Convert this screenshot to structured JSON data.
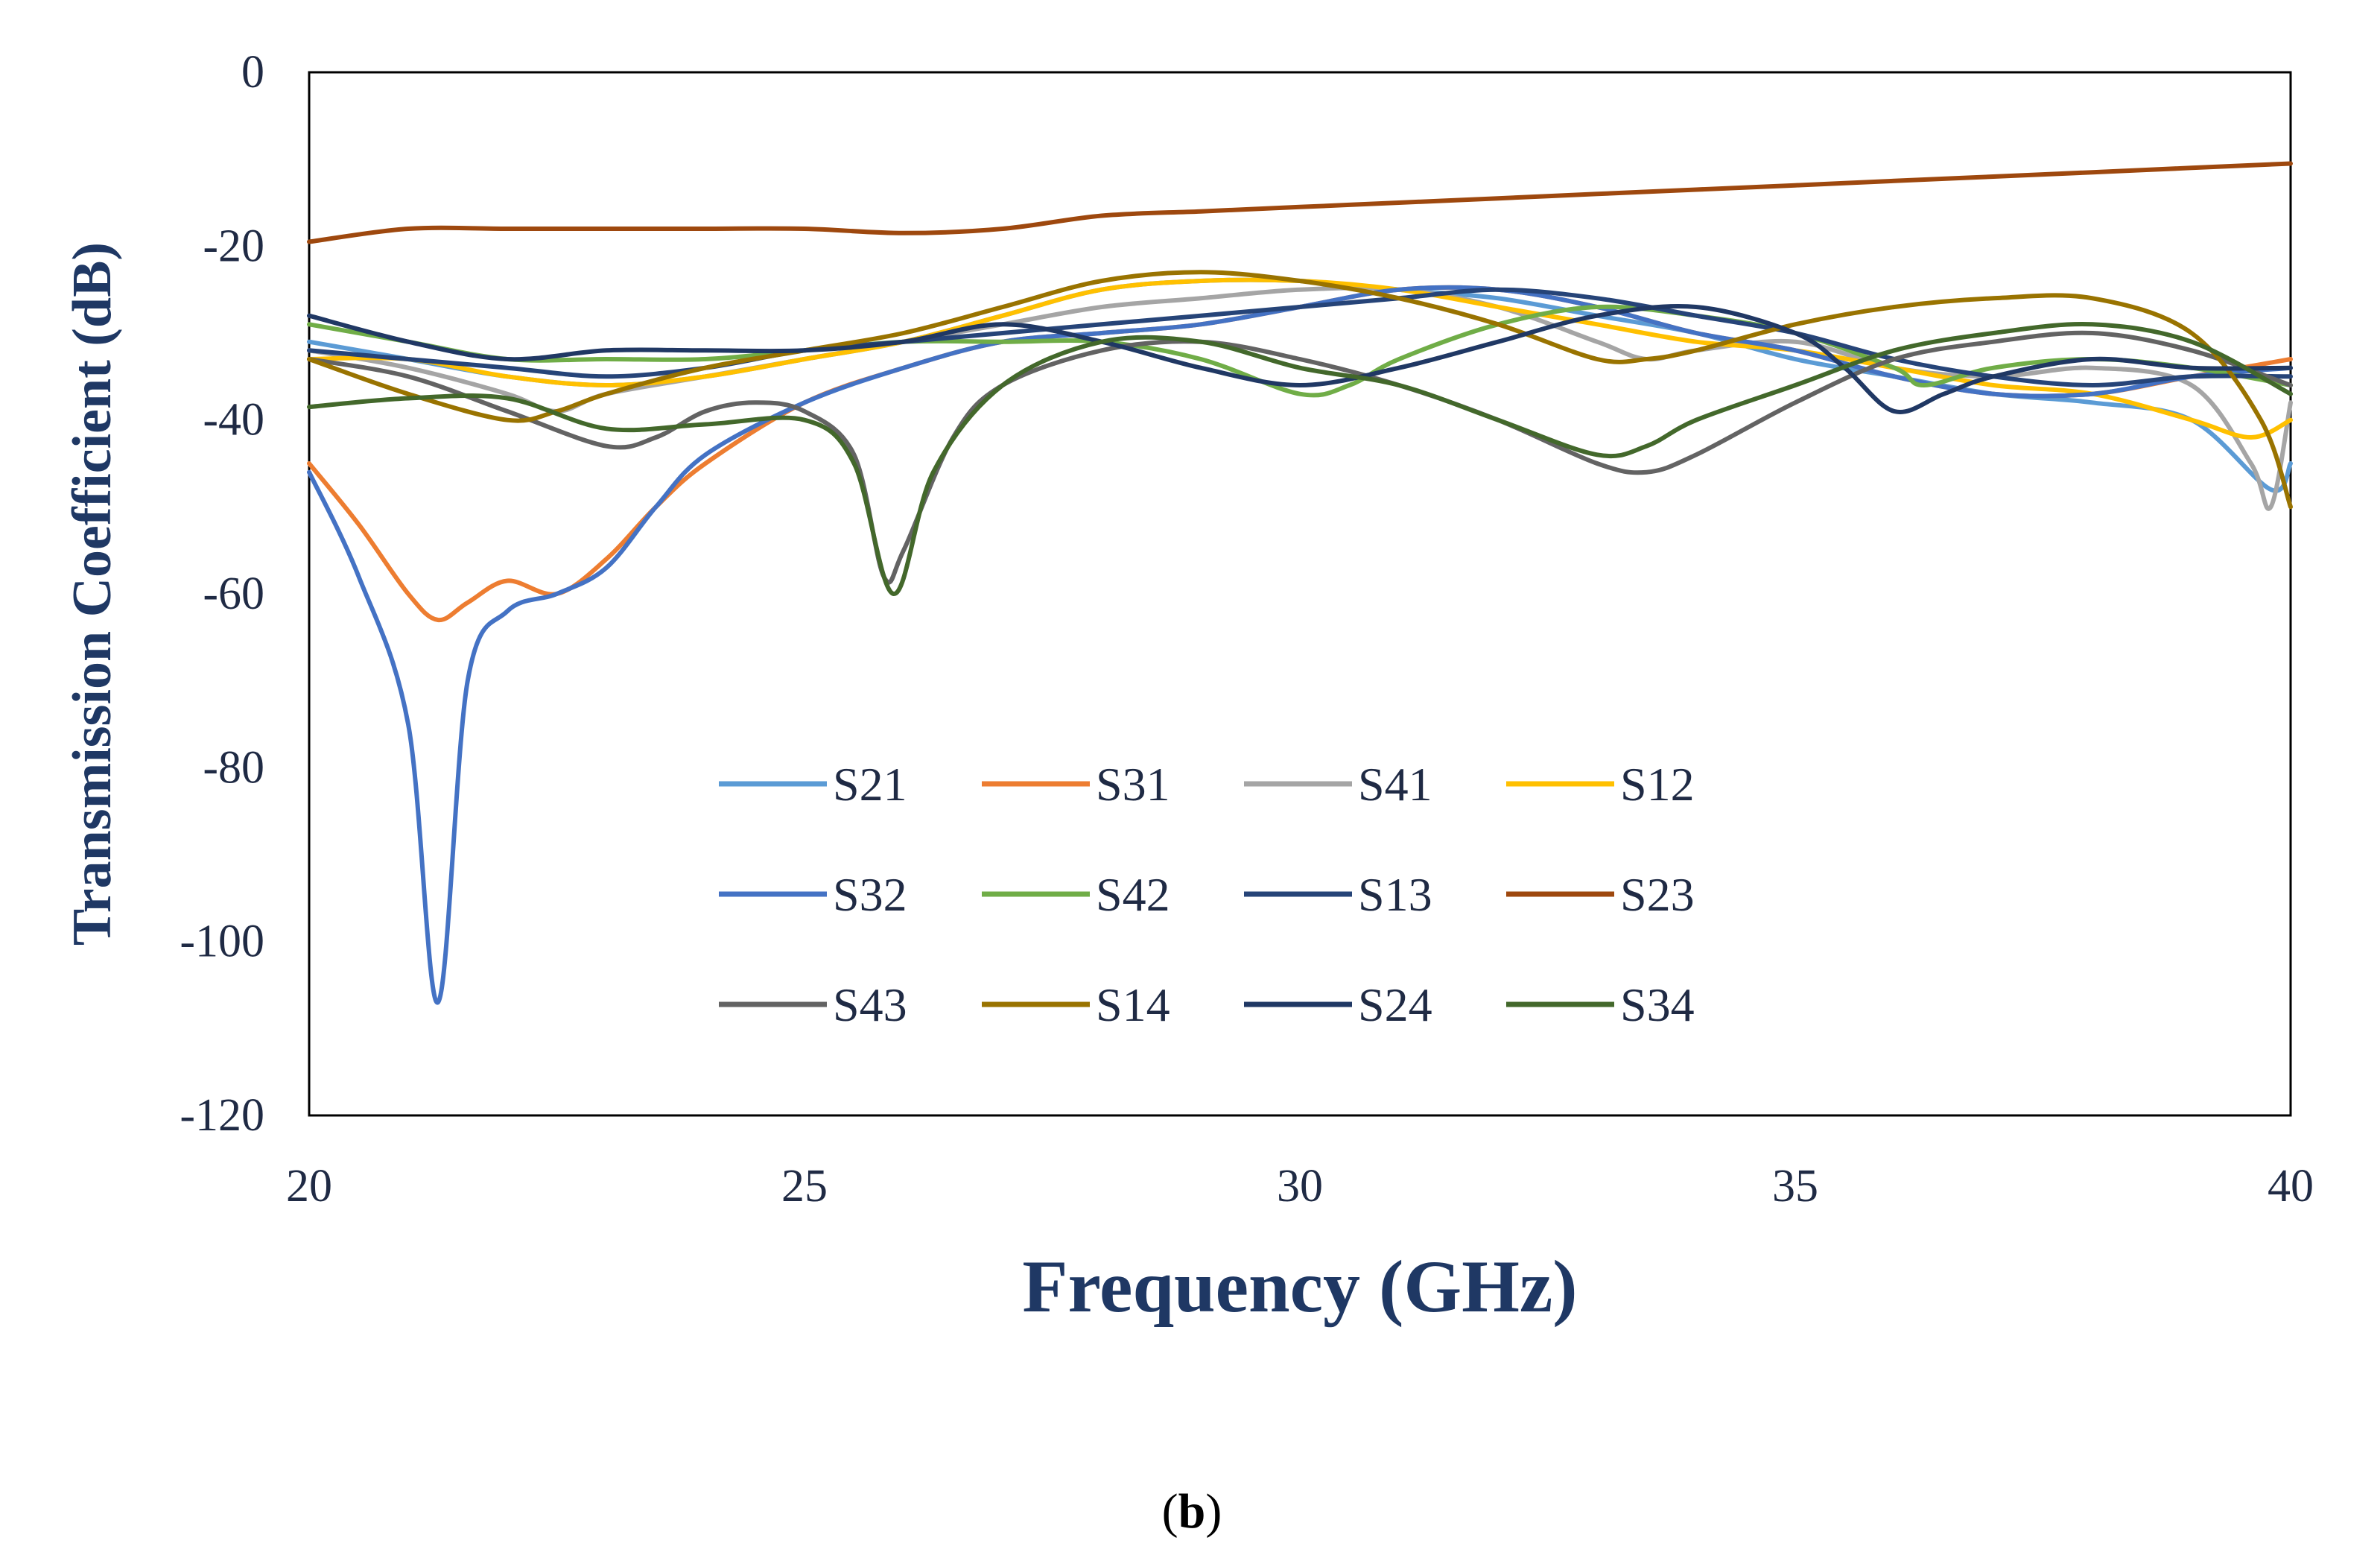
{
  "caption": {
    "open": "(",
    "letter": "b",
    "close": ")"
  },
  "chart_data": {
    "type": "line",
    "xlabel": "Frequency (GHz)",
    "ylabel": "Transmission Coefficient (dB)",
    "xlim": [
      20,
      40
    ],
    "ylim": [
      -120,
      0
    ],
    "xticks": [
      20,
      25,
      30,
      35,
      40
    ],
    "yticks": [
      0,
      -20,
      -40,
      -60,
      -80,
      -100,
      -120
    ],
    "grid": false,
    "legend_position": "inside-lower-center",
    "series": [
      {
        "name": "S21",
        "color": "#5b9bd5",
        "points": [
          [
            20,
            -31
          ],
          [
            21,
            -33
          ],
          [
            22,
            -35
          ],
          [
            23,
            -36
          ],
          [
            24,
            -35
          ],
          [
            25,
            -33
          ],
          [
            26,
            -31
          ],
          [
            27,
            -28
          ],
          [
            28,
            -25
          ],
          [
            29,
            -24
          ],
          [
            30,
            -24
          ],
          [
            31,
            -25
          ],
          [
            32,
            -26
          ],
          [
            33,
            -28
          ],
          [
            34,
            -30
          ],
          [
            35,
            -33
          ],
          [
            36,
            -35
          ],
          [
            37,
            -37
          ],
          [
            38,
            -38
          ],
          [
            39,
            -40
          ],
          [
            39.8,
            -48
          ],
          [
            40,
            -45
          ]
        ]
      },
      {
        "name": "S31",
        "color": "#ed7d31",
        "points": [
          [
            20,
            -45
          ],
          [
            20.5,
            -52
          ],
          [
            21,
            -60
          ],
          [
            21.3,
            -63
          ],
          [
            21.6,
            -61
          ],
          [
            22,
            -58.5
          ],
          [
            22.5,
            -60
          ],
          [
            23,
            -56
          ],
          [
            23.5,
            -50
          ],
          [
            24,
            -45
          ],
          [
            25,
            -38
          ],
          [
            26,
            -34
          ],
          [
            27,
            -31
          ],
          [
            28,
            -30
          ],
          [
            29,
            -29
          ],
          [
            30,
            -27
          ],
          [
            31,
            -25
          ],
          [
            32,
            -25
          ],
          [
            33,
            -27
          ],
          [
            34,
            -30
          ],
          [
            35,
            -32
          ],
          [
            36,
            -35
          ],
          [
            37,
            -37
          ],
          [
            38,
            -37
          ],
          [
            39,
            -35
          ],
          [
            40,
            -33
          ]
        ]
      },
      {
        "name": "S41",
        "color": "#a5a5a5",
        "points": [
          [
            20,
            -32
          ],
          [
            21,
            -34
          ],
          [
            22,
            -37
          ],
          [
            22.5,
            -39
          ],
          [
            23,
            -37
          ],
          [
            24,
            -35
          ],
          [
            25,
            -33
          ],
          [
            26,
            -31
          ],
          [
            27,
            -29
          ],
          [
            28,
            -27
          ],
          [
            29,
            -26
          ],
          [
            30,
            -25
          ],
          [
            31,
            -25
          ],
          [
            32,
            -27
          ],
          [
            33,
            -31
          ],
          [
            33.5,
            -33
          ],
          [
            34,
            -32
          ],
          [
            35,
            -31
          ],
          [
            36,
            -34
          ],
          [
            37,
            -35
          ],
          [
            38,
            -34
          ],
          [
            39,
            -36
          ],
          [
            39.6,
            -45
          ],
          [
            39.8,
            -50
          ],
          [
            40,
            -38
          ]
        ]
      },
      {
        "name": "S12",
        "color": "#ffc000",
        "points": [
          [
            20,
            -33
          ],
          [
            21,
            -33
          ],
          [
            22,
            -35
          ],
          [
            23,
            -36
          ],
          [
            24,
            -35
          ],
          [
            25,
            -33
          ],
          [
            26,
            -31
          ],
          [
            27,
            -28
          ],
          [
            28,
            -25
          ],
          [
            29,
            -24
          ],
          [
            30,
            -24
          ],
          [
            31,
            -25
          ],
          [
            32,
            -27
          ],
          [
            33,
            -29
          ],
          [
            34,
            -31
          ],
          [
            35,
            -32
          ],
          [
            36,
            -34
          ],
          [
            37,
            -36
          ],
          [
            38,
            -37
          ],
          [
            39,
            -40
          ],
          [
            39.6,
            -42
          ],
          [
            40,
            -40
          ]
        ]
      },
      {
        "name": "S32",
        "color": "#4472c4",
        "points": [
          [
            20,
            -46
          ],
          [
            20.5,
            -58
          ],
          [
            21,
            -75
          ],
          [
            21.3,
            -107
          ],
          [
            21.6,
            -70
          ],
          [
            22,
            -62
          ],
          [
            22.5,
            -60
          ],
          [
            23,
            -57
          ],
          [
            23.5,
            -50
          ],
          [
            24,
            -44
          ],
          [
            25,
            -38
          ],
          [
            26,
            -34
          ],
          [
            27,
            -31
          ],
          [
            28,
            -30
          ],
          [
            29,
            -29
          ],
          [
            30,
            -27
          ],
          [
            31,
            -25
          ],
          [
            32,
            -25
          ],
          [
            33,
            -27
          ],
          [
            34,
            -30
          ],
          [
            35,
            -32
          ],
          [
            36,
            -35
          ],
          [
            37,
            -37
          ],
          [
            38,
            -37
          ],
          [
            39,
            -35
          ],
          [
            40,
            -34
          ]
        ]
      },
      {
        "name": "S42",
        "color": "#70ad47",
        "points": [
          [
            20,
            -29
          ],
          [
            21,
            -31
          ],
          [
            22,
            -33
          ],
          [
            23,
            -33
          ],
          [
            24,
            -33
          ],
          [
            25,
            -32
          ],
          [
            26,
            -31
          ],
          [
            27,
            -31
          ],
          [
            28,
            -31
          ],
          [
            29,
            -33
          ],
          [
            30,
            -37
          ],
          [
            30.5,
            -36
          ],
          [
            31,
            -33
          ],
          [
            32,
            -29
          ],
          [
            33,
            -27
          ],
          [
            34,
            -28
          ],
          [
            35,
            -30
          ],
          [
            36,
            -34
          ],
          [
            36.3,
            -36
          ],
          [
            37,
            -34
          ],
          [
            38,
            -33
          ],
          [
            39,
            -34
          ],
          [
            40,
            -36
          ]
        ]
      },
      {
        "name": "S13",
        "color": "#264478",
        "points": [
          [
            20,
            -32
          ],
          [
            21,
            -33
          ],
          [
            22,
            -34
          ],
          [
            23,
            -35
          ],
          [
            24,
            -34
          ],
          [
            25,
            -32
          ],
          [
            26,
            -31
          ],
          [
            27,
            -30
          ],
          [
            28,
            -29
          ],
          [
            29,
            -28
          ],
          [
            30,
            -27
          ],
          [
            31,
            -26
          ],
          [
            32,
            -25
          ],
          [
            33,
            -26
          ],
          [
            34,
            -28
          ],
          [
            35,
            -30
          ],
          [
            36,
            -33
          ],
          [
            37,
            -35
          ],
          [
            38,
            -36
          ],
          [
            39,
            -35
          ],
          [
            40,
            -35
          ]
        ]
      },
      {
        "name": "S23",
        "color": "#9e480e",
        "points": [
          [
            20,
            -19.5
          ],
          [
            21,
            -18
          ],
          [
            22,
            -18
          ],
          [
            23,
            -18
          ],
          [
            24,
            -18
          ],
          [
            25,
            -18
          ],
          [
            26,
            -18.5
          ],
          [
            27,
            -18
          ],
          [
            28,
            -16.5
          ],
          [
            29,
            -16
          ],
          [
            30,
            -15.5
          ],
          [
            31,
            -15
          ],
          [
            32,
            -14.5
          ],
          [
            33,
            -14
          ],
          [
            34,
            -13.5
          ],
          [
            35,
            -13
          ],
          [
            36,
            -12.5
          ],
          [
            37,
            -12
          ],
          [
            38,
            -11.5
          ],
          [
            39,
            -11
          ],
          [
            40,
            -10.5
          ]
        ]
      },
      {
        "name": "S43",
        "color": "#636363",
        "points": [
          [
            20,
            -33
          ],
          [
            21,
            -35
          ],
          [
            22,
            -39
          ],
          [
            23,
            -43
          ],
          [
            23.5,
            -42
          ],
          [
            24,
            -39
          ],
          [
            24.5,
            -38
          ],
          [
            25,
            -39
          ],
          [
            25.5,
            -44
          ],
          [
            25.8,
            -58
          ],
          [
            26,
            -55
          ],
          [
            26.5,
            -42
          ],
          [
            27,
            -36
          ],
          [
            28,
            -32
          ],
          [
            29,
            -31
          ],
          [
            30,
            -33
          ],
          [
            31,
            -36
          ],
          [
            32,
            -40
          ],
          [
            33,
            -45
          ],
          [
            33.5,
            -46
          ],
          [
            34,
            -44
          ],
          [
            35,
            -38
          ],
          [
            36,
            -33
          ],
          [
            37,
            -31
          ],
          [
            38,
            -30
          ],
          [
            39,
            -32
          ],
          [
            40,
            -36
          ]
        ]
      },
      {
        "name": "S14",
        "color": "#997300",
        "points": [
          [
            20,
            -33
          ],
          [
            21,
            -37
          ],
          [
            22,
            -40
          ],
          [
            22.5,
            -39
          ],
          [
            23,
            -37
          ],
          [
            24,
            -34
          ],
          [
            25,
            -32
          ],
          [
            26,
            -30
          ],
          [
            27,
            -27
          ],
          [
            28,
            -24
          ],
          [
            29,
            -23
          ],
          [
            30,
            -24
          ],
          [
            31,
            -26
          ],
          [
            32,
            -29
          ],
          [
            33,
            -33
          ],
          [
            33.5,
            -33
          ],
          [
            34,
            -32
          ],
          [
            35,
            -29
          ],
          [
            36,
            -27
          ],
          [
            37,
            -26
          ],
          [
            38,
            -26
          ],
          [
            39,
            -30
          ],
          [
            39.7,
            -40
          ],
          [
            40,
            -50
          ]
        ]
      },
      {
        "name": "S24",
        "color": "#203864",
        "points": [
          [
            20,
            -28
          ],
          [
            21,
            -31
          ],
          [
            22,
            -33
          ],
          [
            23,
            -32
          ],
          [
            24,
            -32
          ],
          [
            25,
            -32
          ],
          [
            26,
            -31
          ],
          [
            27,
            -29
          ],
          [
            28,
            -31
          ],
          [
            29,
            -34
          ],
          [
            30,
            -36
          ],
          [
            31,
            -34
          ],
          [
            32,
            -31
          ],
          [
            33,
            -28
          ],
          [
            34,
            -27
          ],
          [
            35,
            -30
          ],
          [
            35.5,
            -34
          ],
          [
            36,
            -39
          ],
          [
            36.5,
            -37
          ],
          [
            37,
            -35
          ],
          [
            38,
            -33
          ],
          [
            39,
            -34
          ],
          [
            40,
            -34
          ]
        ]
      },
      {
        "name": "S34",
        "color": "#43682b",
        "points": [
          [
            20,
            -38.5
          ],
          [
            21,
            -37.5
          ],
          [
            22,
            -37.5
          ],
          [
            23,
            -41
          ],
          [
            24,
            -40.5
          ],
          [
            25,
            -40
          ],
          [
            25.5,
            -45
          ],
          [
            25.9,
            -60
          ],
          [
            26.3,
            -46
          ],
          [
            27,
            -36
          ],
          [
            28,
            -31
          ],
          [
            29,
            -31
          ],
          [
            30,
            -34
          ],
          [
            31,
            -36
          ],
          [
            32,
            -40
          ],
          [
            33,
            -44
          ],
          [
            33.5,
            -43
          ],
          [
            34,
            -40
          ],
          [
            35,
            -36
          ],
          [
            36,
            -32
          ],
          [
            37,
            -30
          ],
          [
            38,
            -29
          ],
          [
            39,
            -31
          ],
          [
            40,
            -37
          ]
        ]
      }
    ]
  }
}
